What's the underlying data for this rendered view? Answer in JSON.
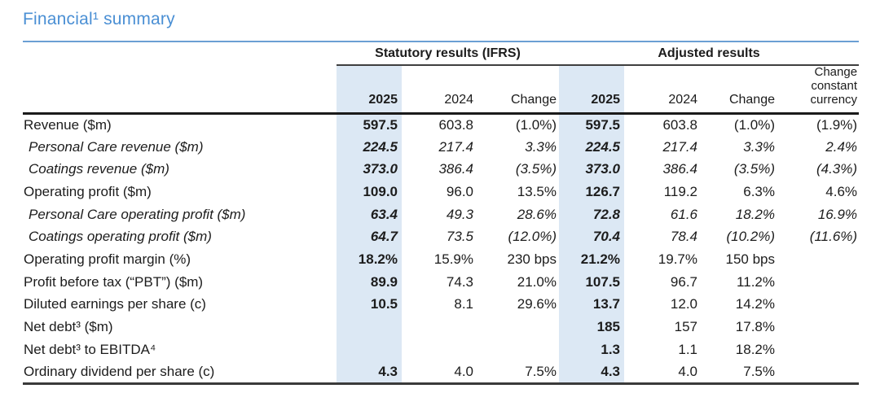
{
  "title": {
    "text": "Financial¹ summary"
  },
  "table": {
    "group_headers": {
      "statutory": "Statutory results (IFRS)",
      "adjusted": "Adjusted results"
    },
    "column_headers": {
      "stat_2025": "2025",
      "stat_2024": "2024",
      "stat_change": "Change",
      "adj_2025": "2025",
      "adj_2024": "2024",
      "adj_change": "Change",
      "change_constant_currency": "Change constant currency"
    },
    "rows": [
      {
        "label": "Revenue ($m)",
        "italic": false,
        "stat_2025": "597.5",
        "stat_2024": "603.8",
        "stat_change": "(1.0%)",
        "adj_2025": "597.5",
        "adj_2024": "603.8",
        "adj_change": "(1.0%)",
        "change_constant_currency": "(1.9%)"
      },
      {
        "label": "Personal Care revenue ($m)",
        "italic": true,
        "stat_2025": "224.5",
        "stat_2024": "217.4",
        "stat_change": "3.3%",
        "adj_2025": "224.5",
        "adj_2024": "217.4",
        "adj_change": "3.3%",
        "change_constant_currency": "2.4%"
      },
      {
        "label": "Coatings revenue ($m)",
        "italic": true,
        "stat_2025": "373.0",
        "stat_2024": "386.4",
        "stat_change": "(3.5%)",
        "adj_2025": "373.0",
        "adj_2024": "386.4",
        "adj_change": "(3.5%)",
        "change_constant_currency": "(4.3%)"
      },
      {
        "label": "Operating profit ($m)",
        "italic": false,
        "stat_2025": "109.0",
        "stat_2024": "96.0",
        "stat_change": "13.5%",
        "adj_2025": "126.7",
        "adj_2024": "119.2",
        "adj_change": "6.3%",
        "change_constant_currency": "4.6%"
      },
      {
        "label": "Personal Care operating profit ($m)",
        "italic": true,
        "stat_2025": "63.4",
        "stat_2024": "49.3",
        "stat_change": "28.6%",
        "adj_2025": "72.8",
        "adj_2024": "61.6",
        "adj_change": "18.2%",
        "change_constant_currency": "16.9%"
      },
      {
        "label": "Coatings operating profit ($m)",
        "italic": true,
        "stat_2025": "64.7",
        "stat_2024": "73.5",
        "stat_change": "(12.0%)",
        "adj_2025": "70.4",
        "adj_2024": "78.4",
        "adj_change": "(10.2%)",
        "change_constant_currency": "(11.6%)"
      },
      {
        "label": "Operating profit margin (%)",
        "italic": false,
        "stat_2025": "18.2%",
        "stat_2024": "15.9%",
        "stat_change": "230 bps",
        "adj_2025": "21.2%",
        "adj_2024": "19.7%",
        "adj_change": "150 bps",
        "change_constant_currency": ""
      },
      {
        "label": "Profit before tax (“PBT”) ($m)",
        "italic": false,
        "stat_2025": "89.9",
        "stat_2024": "74.3",
        "stat_change": "21.0%",
        "adj_2025": "107.5",
        "adj_2024": "96.7",
        "adj_change": "11.2%",
        "change_constant_currency": ""
      },
      {
        "label": "Diluted earnings per share (c)",
        "italic": false,
        "stat_2025": "10.5",
        "stat_2024": "8.1",
        "stat_change": "29.6%",
        "adj_2025": "13.7",
        "adj_2024": "12.0",
        "adj_change": "14.2%",
        "change_constant_currency": ""
      },
      {
        "label": "Net debt³ ($m)",
        "italic": false,
        "stat_2025": "",
        "stat_2024": "",
        "stat_change": "",
        "adj_2025": "185",
        "adj_2024": "157",
        "adj_change": "17.8%",
        "change_constant_currency": ""
      },
      {
        "label": "Net debt³ to EBITDA⁴",
        "italic": false,
        "stat_2025": "",
        "stat_2024": "",
        "stat_change": "",
        "adj_2025": "1.3",
        "adj_2024": "1.1",
        "adj_change": "18.2%",
        "change_constant_currency": ""
      },
      {
        "label": "Ordinary dividend per share (c)",
        "italic": false,
        "stat_2025": "4.3",
        "stat_2024": "4.0",
        "stat_change": "7.5%",
        "adj_2025": "4.3",
        "adj_2024": "4.0",
        "adj_change": "7.5%",
        "change_constant_currency": ""
      }
    ]
  },
  "colors": {
    "accent_blue": "#4a8fd4",
    "rule_blue": "#6b9fd4",
    "highlight_band": "#dce8f4"
  }
}
